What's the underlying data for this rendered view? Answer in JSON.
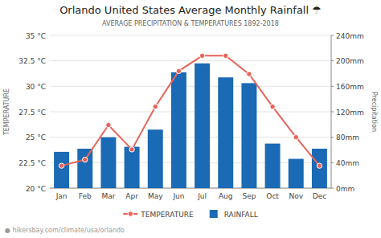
{
  "chart_data": {
    "type": "bar",
    "title": "Orlando United States Average Monthly Rainfall ☂",
    "subtitle": "AVERAGE PRECIPITATION & TEMPERATURES 1892-2018",
    "y_label": "TEMPERATURE",
    "y2_label": "Precipitation",
    "annotations": [
      "● hikersbay.com/climate/usa/orlando"
    ],
    "categories": [
      "Jan",
      "Feb",
      "Mar",
      "Apr",
      "May",
      "Jun",
      "Jul",
      "Aug",
      "Sep",
      "Oct",
      "Nov",
      "Dec"
    ],
    "series": [
      {
        "name": "TEMPERATURE",
        "type": "line",
        "color": "#E8645A",
        "marker": "circle",
        "values": [
          22.2,
          22.8,
          26.2,
          23.8,
          28.0,
          31.5,
          33.0,
          33.0,
          31.2,
          28.0,
          25.0,
          22.2
        ]
      },
      {
        "name": "RAINFALL",
        "type": "bar",
        "axis": "y2",
        "color": "#1A6AB5",
        "values": [
          57,
          62,
          80,
          65,
          92,
          182,
          196,
          174,
          165,
          70,
          46,
          62
        ]
      }
    ],
    "ylim": [
      20,
      35
    ],
    "yticks": [
      {
        "value": 20,
        "label": "20 °C"
      },
      {
        "value": 22.5,
        "label": "22.5 °C"
      },
      {
        "value": 25,
        "label": "25 °C"
      },
      {
        "value": 27.5,
        "label": "27.5 °C"
      },
      {
        "value": 30,
        "label": "30 °C"
      },
      {
        "value": 32.5,
        "label": "32.5 °C"
      },
      {
        "value": 35,
        "label": "35 °C"
      }
    ],
    "y2lim": [
      0,
      240
    ],
    "y2ticks": [
      {
        "value": 0,
        "label": "0mm"
      },
      {
        "value": 40,
        "label": "40mm"
      },
      {
        "value": 80,
        "label": "80mm"
      },
      {
        "value": 120,
        "label": "120mm"
      },
      {
        "value": 160,
        "label": "160mm"
      },
      {
        "value": 200,
        "label": "200mm"
      },
      {
        "value": 240,
        "label": "240mm"
      }
    ],
    "grid": true,
    "legend": "bottom"
  }
}
